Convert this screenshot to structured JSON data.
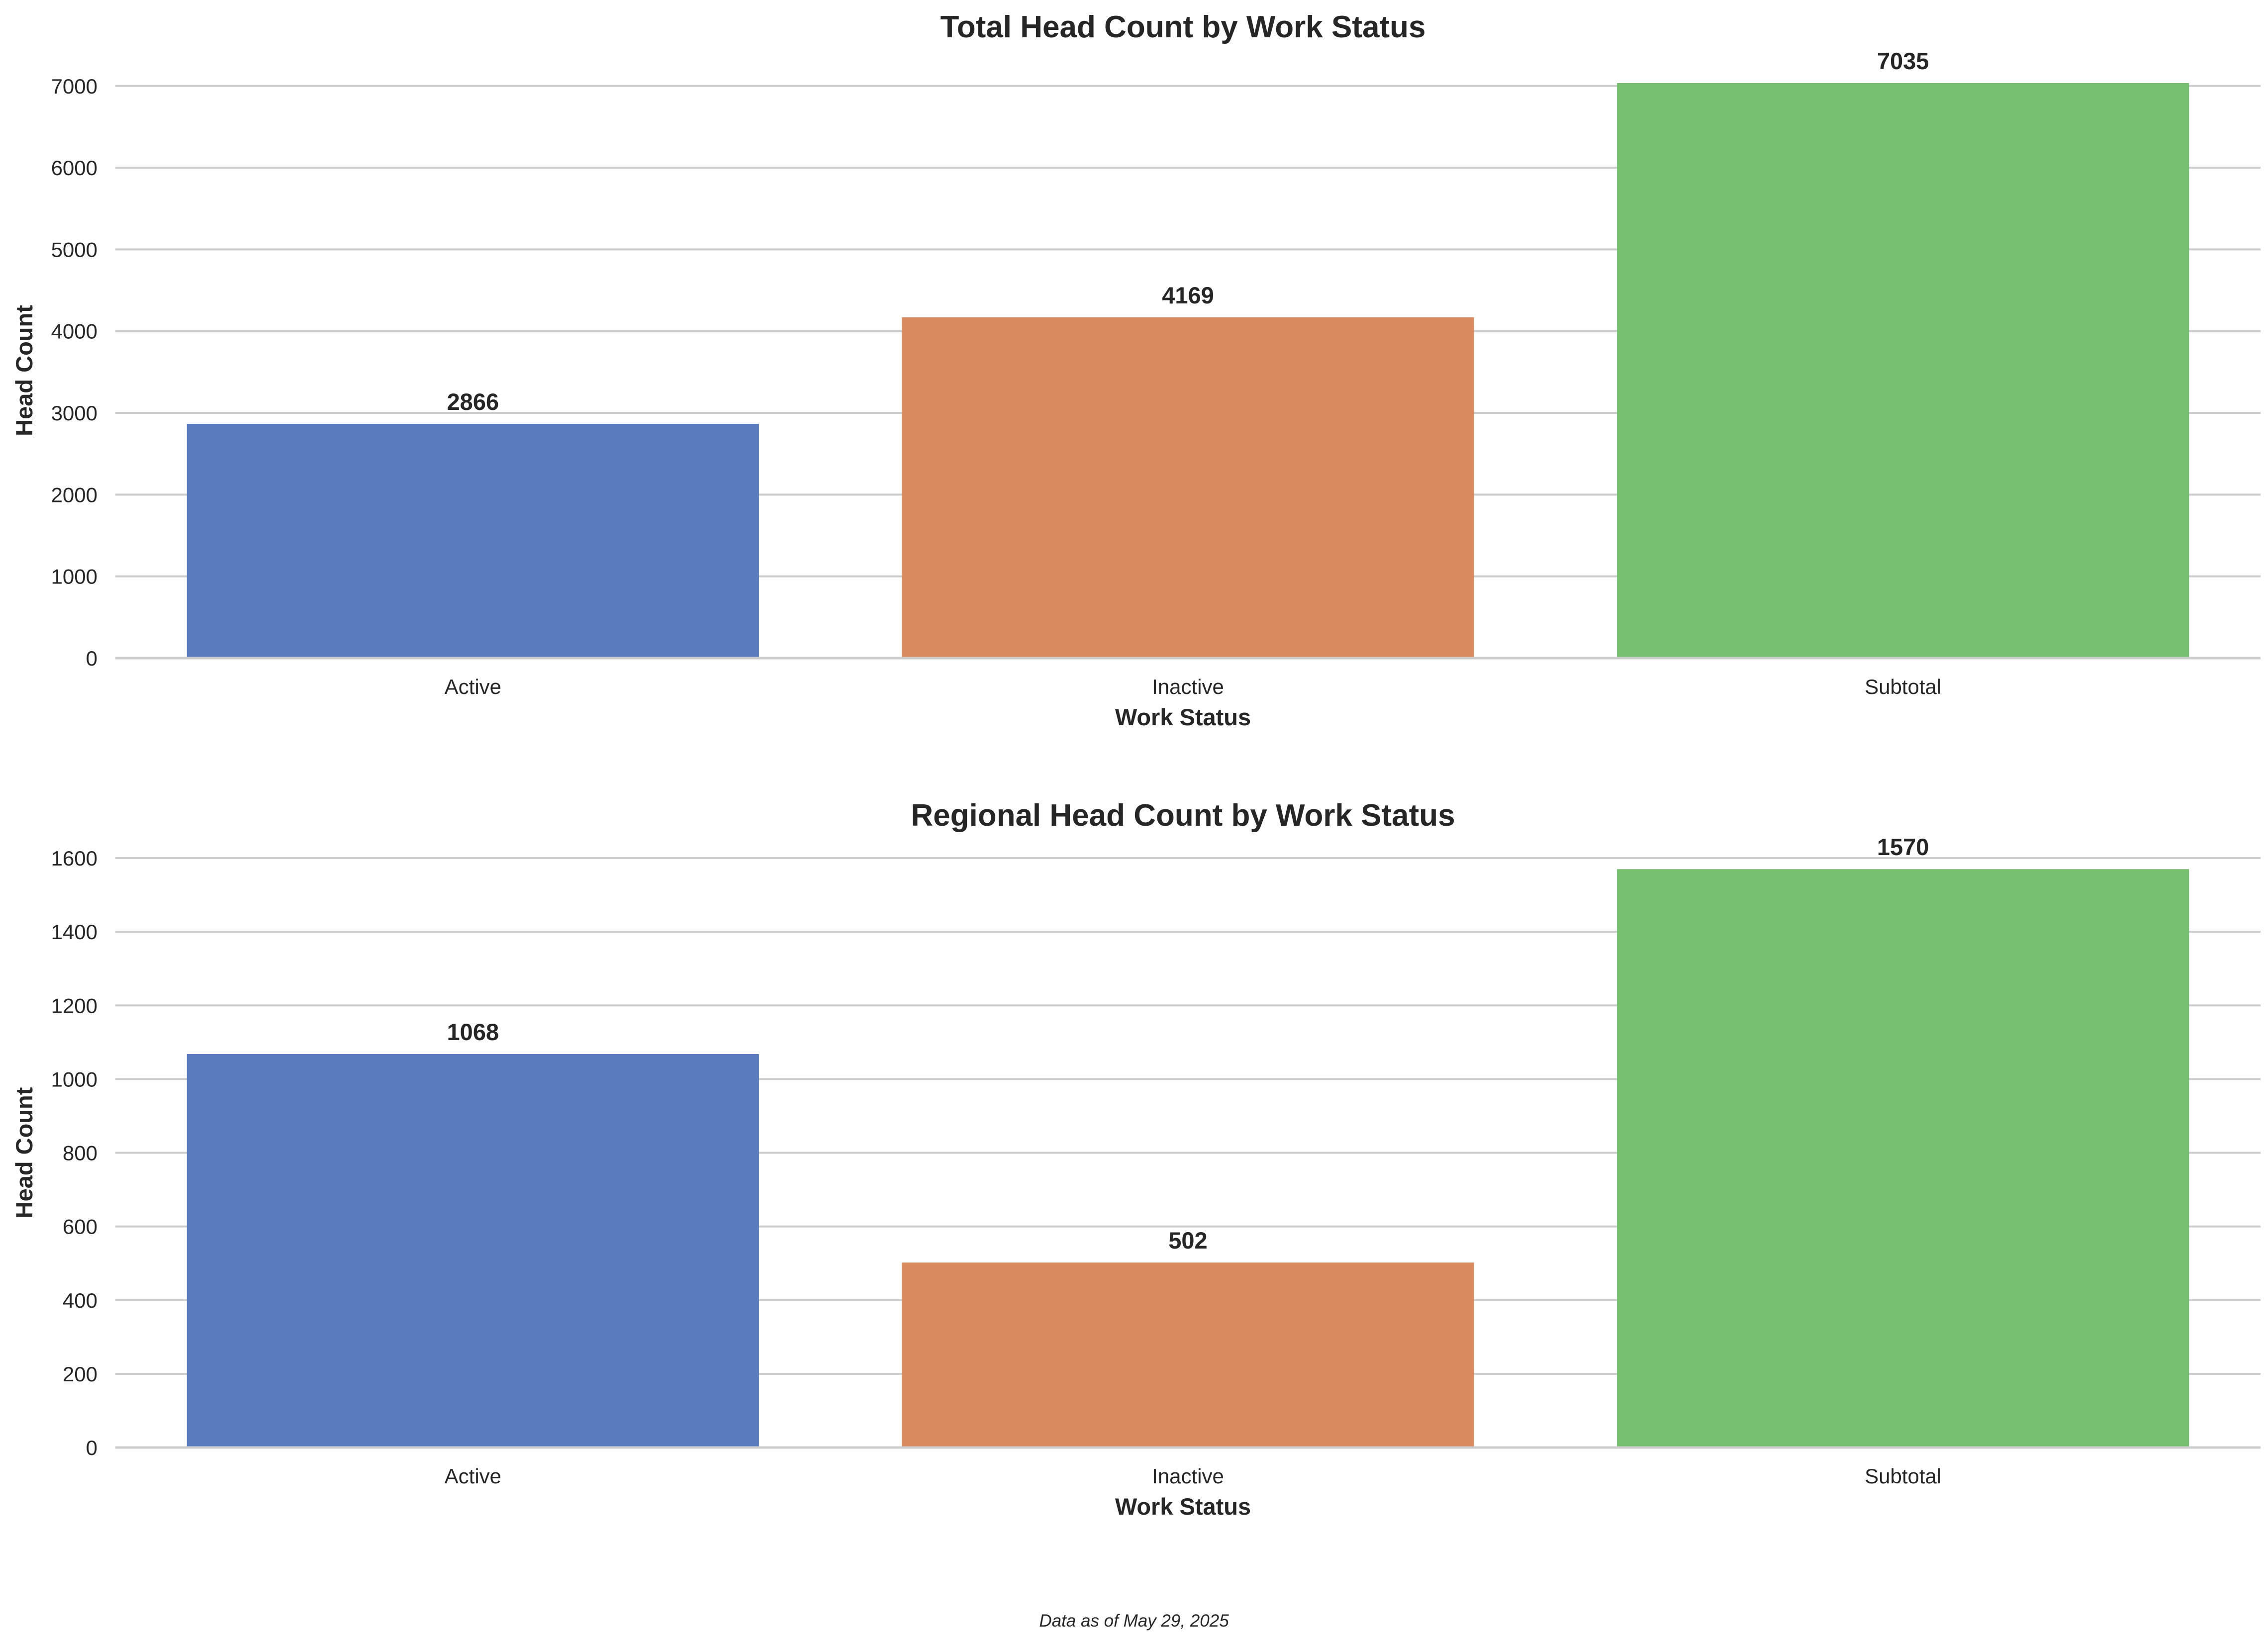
{
  "chart_data": [
    {
      "type": "bar",
      "title": "Total Head Count by Work Status",
      "xlabel": "Work Status",
      "ylabel": "Head Count",
      "categories": [
        "Active",
        "Inactive",
        "Subtotal"
      ],
      "values": [
        2866,
        4169,
        7035
      ],
      "data_labels": [
        "2866",
        "4169",
        "7035"
      ],
      "ylim": [
        0,
        7035
      ],
      "yticks": [
        0,
        1000,
        2000,
        3000,
        4000,
        5000,
        6000,
        7000
      ],
      "ytick_labels": [
        "0",
        "1000",
        "2000",
        "3000",
        "4000",
        "5000",
        "6000",
        "7000"
      ],
      "grid": "horizontal",
      "colors": [
        "#5b7bbf",
        "#d98a5e",
        "#76bf6f"
      ]
    },
    {
      "type": "bar",
      "title": "Regional Head Count by Work Status",
      "xlabel": "Work Status",
      "ylabel": "Head Count",
      "categories": [
        "Active",
        "Inactive",
        "Subtotal"
      ],
      "values": [
        1068,
        502,
        1570
      ],
      "data_labels": [
        "1068",
        "502",
        "1570"
      ],
      "ylim": [
        0,
        1600
      ],
      "yticks": [
        0,
        200,
        400,
        600,
        800,
        1000,
        1200,
        1400,
        1600
      ],
      "ytick_labels": [
        "0",
        "200",
        "400",
        "600",
        "800",
        "1000",
        "1200",
        "1400",
        "1600"
      ],
      "grid": "horizontal",
      "colors": [
        "#5b7bbf",
        "#d98a5e",
        "#76bf6f"
      ]
    }
  ],
  "footnote": "Data as of May 29, 2025"
}
